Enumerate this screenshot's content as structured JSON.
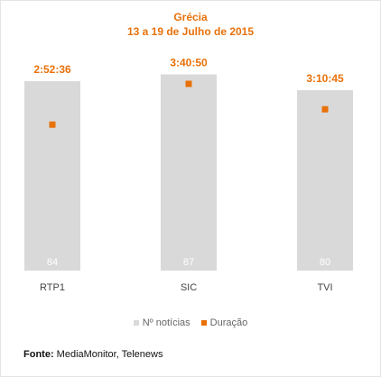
{
  "chart_data": {
    "type": "bar",
    "title": "Grécia",
    "subtitle": "13 a 19 de Julho de 2015",
    "categories": [
      "RTP1",
      "SIC",
      "TVI"
    ],
    "series": [
      {
        "name": "Nº notícias",
        "values": [
          84,
          87,
          80
        ],
        "color": "#d9d9d9",
        "kind": "bar"
      },
      {
        "name": "Duração",
        "values": [
          "2:52:36",
          "3:40:50",
          "3:10:45"
        ],
        "color": "#e8710a",
        "kind": "marker"
      }
    ],
    "bar_ylim": [
      0,
      90
    ],
    "marker_ylim": [
      0,
      14400
    ],
    "legend_position": "bottom",
    "grid": false
  },
  "source": {
    "label": "Fonte:",
    "text": "MediaMonitor, Telenews"
  }
}
